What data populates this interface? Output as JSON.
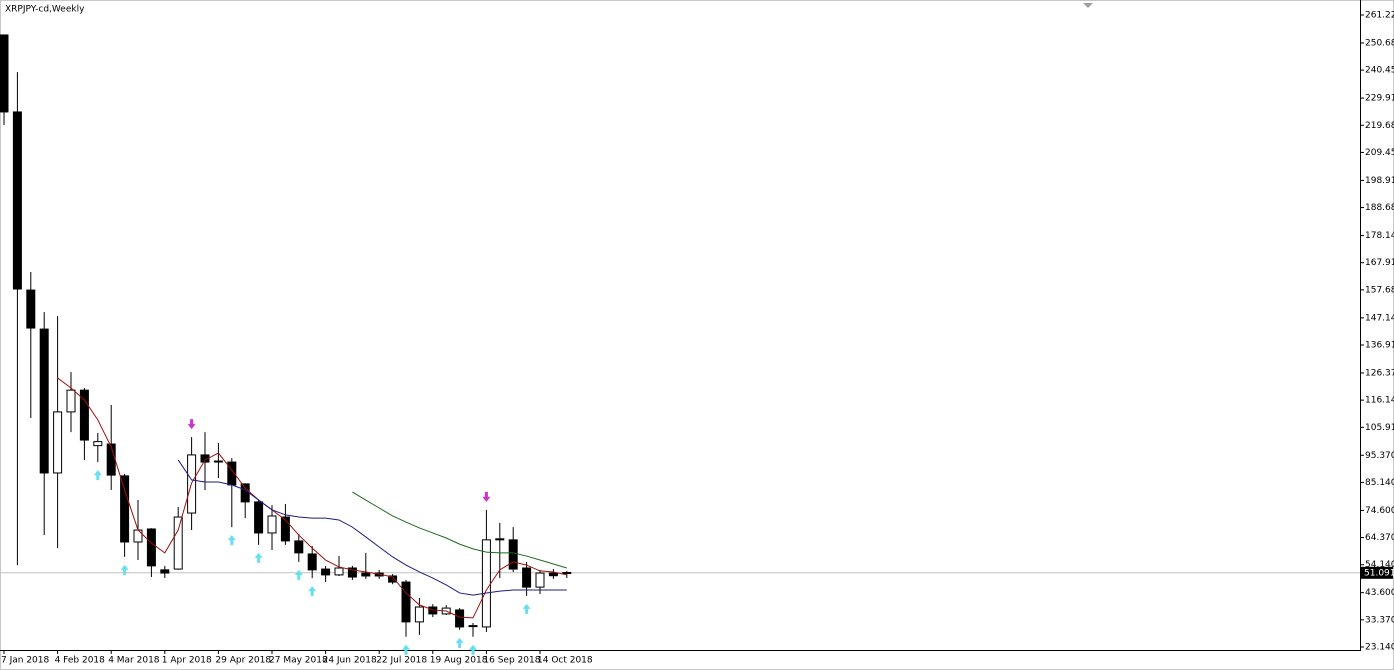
{
  "chart_data": {
    "type": "candlestick",
    "title": "XRPJPY-cd,Weekly",
    "categories": [
      "7 Jan 2018",
      null,
      null,
      null,
      "4 Feb 2018",
      null,
      null,
      null,
      "4 Mar 2018",
      null,
      null,
      null,
      "1 Apr 2018",
      null,
      null,
      null,
      "29 Apr 2018",
      null,
      null,
      null,
      "27 May 2018",
      null,
      null,
      null,
      "24 Jun 2018",
      null,
      null,
      null,
      "22 Jul 2018",
      null,
      null,
      null,
      "19 Aug 2018",
      null,
      null,
      null,
      "16 Sep 2018",
      null,
      null,
      null,
      "14 Oct 2018",
      null,
      null
    ],
    "open": [
      253.7,
      224.7,
      157.6,
      142.9,
      88.7,
      111.7,
      119.9,
      99.0,
      99.6,
      87.6,
      62.7,
      67.6,
      52.2,
      52.5,
      73.6,
      95.5,
      93.2,
      92.8,
      84.6,
      77.8,
      66.1,
      72.1,
      63.1,
      58.2,
      52.5,
      50.3,
      52.9,
      51.0,
      51.0,
      49.9,
      47.6,
      32.6,
      38.2,
      35.6,
      37.1,
      31.2,
      30.7,
      63.9,
      63.5,
      52.9,
      45.7,
      51.0,
      51.2
    ],
    "high": [
      253.7,
      239.7,
      164.4,
      149.3,
      147.8,
      126.7,
      120.7,
      103.8,
      114.3,
      88.3,
      78.5,
      67.9,
      53.7,
      75.9,
      102.2,
      104.1,
      100.0,
      94.3,
      84.6,
      78.5,
      76.6,
      77.0,
      65.7,
      61.2,
      53.7,
      57.4,
      53.7,
      58.6,
      52.2,
      50.6,
      48.4,
      41.6,
      39.3,
      38.9,
      37.8,
      32.2,
      74.8,
      69.9,
      68.3,
      55.2,
      52.2,
      52.5,
      51.8
    ],
    "low": [
      219.8,
      54.0,
      109.4,
      65.3,
      60.4,
      104.1,
      93.6,
      92.8,
      82.3,
      57.1,
      55.9,
      49.5,
      49.1,
      52.2,
      67.2,
      82.3,
      86.8,
      68.3,
      71.7,
      61.6,
      59.7,
      61.6,
      55.2,
      49.1,
      47.6,
      49.9,
      48.4,
      48.8,
      48.8,
      46.8,
      27.0,
      27.7,
      34.4,
      35.2,
      29.6,
      27.0,
      28.8,
      49.1,
      51.4,
      42.4,
      43.1,
      48.8,
      49.1
    ],
    "close": [
      224.7,
      158.0,
      143.3,
      88.7,
      111.7,
      119.9,
      101.1,
      100.5,
      87.9,
      62.7,
      67.2,
      53.7,
      51.0,
      72.1,
      95.5,
      92.8,
      93.0,
      84.2,
      77.8,
      66.1,
      72.5,
      63.1,
      58.6,
      52.2,
      50.3,
      52.9,
      49.5,
      49.9,
      49.9,
      47.6,
      32.6,
      38.2,
      35.6,
      37.8,
      30.7,
      30.9,
      63.5,
      63.5,
      52.5,
      45.7,
      51.0,
      50.0,
      51.091
    ],
    "bull_color": "#ffffff",
    "bear_color": "#000000",
    "lines": [
      {
        "color": "#a01010",
        "values": [
          null,
          null,
          null,
          null,
          124.5,
          120.7,
          116.2,
          108.7,
          98.5,
          82.3,
          67.2,
          62.3,
          58.6,
          67.2,
          84.9,
          93.6,
          96.2,
          89.8,
          83.0,
          78.5,
          74.8,
          71.0,
          65.3,
          60.4,
          55.9,
          53.3,
          52.2,
          51.4,
          50.6,
          49.5,
          43.5,
          39.0,
          37.1,
          36.7,
          34.4,
          34.1,
          44.6,
          52.2,
          55.2,
          54.0,
          51.8,
          51.4,
          50.3
        ]
      },
      {
        "color": "#1c1c80",
        "values": [
          null,
          null,
          null,
          null,
          null,
          null,
          null,
          null,
          null,
          null,
          null,
          null,
          null,
          93.6,
          86.1,
          85.3,
          85.3,
          84.2,
          82.3,
          78.5,
          74.8,
          72.9,
          72.1,
          71.7,
          71.7,
          71.0,
          68.3,
          64.6,
          60.8,
          57.1,
          54.0,
          51.4,
          49.1,
          46.5,
          43.5,
          42.7,
          43.5,
          44.2,
          44.6,
          44.6,
          44.6,
          44.6,
          44.6
        ]
      },
      {
        "color": "#1e6b1e",
        "values": [
          null,
          null,
          null,
          null,
          null,
          null,
          null,
          null,
          null,
          null,
          null,
          null,
          null,
          null,
          null,
          null,
          null,
          null,
          null,
          null,
          null,
          null,
          null,
          null,
          null,
          null,
          81.5,
          78.5,
          75.5,
          72.5,
          70.2,
          68.0,
          66.1,
          64.2,
          61.9,
          60.1,
          58.9,
          58.6,
          58.6,
          57.4,
          55.9,
          54.4,
          52.9
        ]
      }
    ],
    "fractal_lows": {
      "color": "#66e0f0",
      "values": [
        null,
        null,
        null,
        null,
        null,
        null,
        null,
        92.8,
        null,
        57.1,
        null,
        null,
        null,
        null,
        null,
        null,
        null,
        68.3,
        null,
        61.6,
        null,
        null,
        55.2,
        49.1,
        null,
        null,
        null,
        null,
        null,
        null,
        27.0,
        null,
        null,
        null,
        29.6,
        27.0,
        null,
        null,
        null,
        42.4,
        null,
        null,
        null
      ]
    },
    "fractal_highs": {
      "color": "#cc33cc",
      "values": [
        null,
        null,
        null,
        null,
        null,
        null,
        null,
        null,
        null,
        null,
        null,
        null,
        null,
        null,
        102.2,
        null,
        null,
        null,
        null,
        null,
        null,
        null,
        null,
        null,
        null,
        null,
        null,
        null,
        null,
        null,
        null,
        null,
        null,
        null,
        null,
        null,
        74.8,
        null,
        null,
        null,
        null,
        null,
        null
      ]
    },
    "last_price": 51.091,
    "ylim": [
      22.01,
      266.87
    ],
    "yticks": [
      {
        "value": 261.22,
        "label": "261.220"
      },
      {
        "value": 250.68,
        "label": "250.680"
      },
      {
        "value": 240.45,
        "label": "240.450"
      },
      {
        "value": 229.91,
        "label": "229.910"
      },
      {
        "value": 219.68,
        "label": "219.680"
      },
      {
        "value": 209.45,
        "label": "209.450"
      },
      {
        "value": 198.91,
        "label": "198.910"
      },
      {
        "value": 188.68,
        "label": "188.680"
      },
      {
        "value": 178.14,
        "label": "178.140"
      },
      {
        "value": 167.91,
        "label": "167.910"
      },
      {
        "value": 157.68,
        "label": "157.680"
      },
      {
        "value": 147.14,
        "label": "147.140"
      },
      {
        "value": 136.91,
        "label": "136.910"
      },
      {
        "value": 126.37,
        "label": "126.370"
      },
      {
        "value": 116.14,
        "label": "116.140"
      },
      {
        "value": 105.91,
        "label": "105.910"
      },
      {
        "value": 95.37,
        "label": "95.370"
      },
      {
        "value": 85.14,
        "label": "85.140"
      },
      {
        "value": 74.6,
        "label": "74.600"
      },
      {
        "value": 64.37,
        "label": "64.370"
      },
      {
        "value": 54.14,
        "label": "54.140"
      },
      {
        "value": 43.6,
        "label": "43.600"
      },
      {
        "value": 33.37,
        "label": "33.370"
      },
      {
        "value": 23.14,
        "label": "23.140"
      }
    ]
  }
}
